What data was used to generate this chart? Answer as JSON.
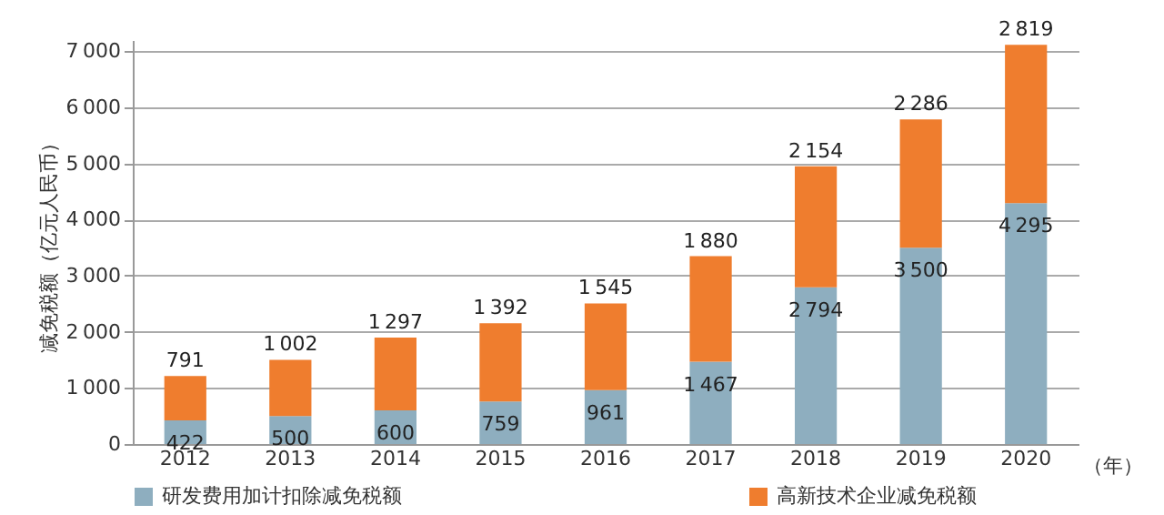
{
  "chart_data": {
    "type": "bar",
    "stacked": true,
    "categories": [
      "2012",
      "2013",
      "2014",
      "2015",
      "2016",
      "2017",
      "2018",
      "2019",
      "2020"
    ],
    "xlabel": "（年）",
    "ylabel": "减免税额（亿元人民币）",
    "ylim": [
      0,
      7200
    ],
    "yticks": [
      0,
      {
        "value": 1000,
        "label": "1 000"
      },
      {
        "value": 2000,
        "label": "2 000"
      },
      {
        "value": 3000,
        "label": "3 000"
      },
      {
        "value": 4000,
        "label": "4 000"
      },
      {
        "value": 5000,
        "label": "5 000"
      },
      {
        "value": 6000,
        "label": "6 000"
      },
      {
        "value": 7000,
        "label": "7 000"
      }
    ],
    "grid": "y",
    "legend": "bottom",
    "series": [
      {
        "name": "研发费用加计扣除减免税额",
        "color": "#8eaebf",
        "values": [
          422,
          500,
          600,
          759,
          961,
          1467,
          2794,
          3500,
          4295
        ],
        "value_labels": [
          "422",
          "500",
          "600",
          "759",
          "961",
          "1 467",
          "2 794",
          "3 500",
          "4 295"
        ]
      },
      {
        "name": "高新技术企业减免税额",
        "color": "#ef7d2e",
        "values": [
          791,
          1002,
          1297,
          1392,
          1545,
          1880,
          2154,
          2286,
          2819
        ],
        "value_labels": [
          "791",
          "1 002",
          "1 297",
          "1 392",
          "1 545",
          "1 880",
          "2 154",
          "2 286",
          "2 819"
        ]
      }
    ]
  }
}
